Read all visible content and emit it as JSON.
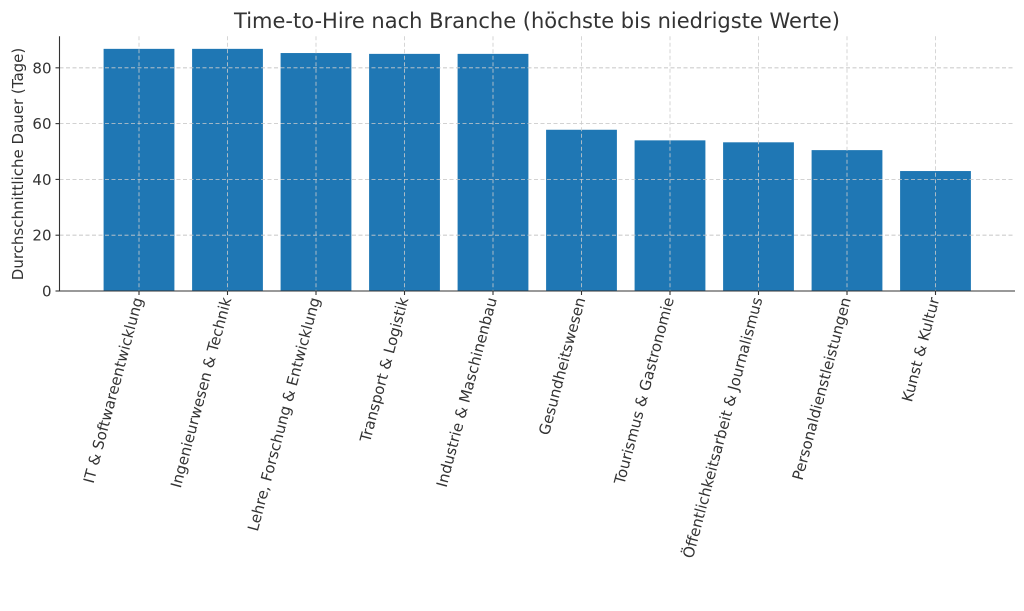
{
  "chart_data": {
    "type": "bar",
    "title": "Time-to-Hire nach Branche (höchste bis niedrigste Werte)",
    "xlabel": "",
    "ylabel": "Durchschnittliche Dauer (Tage)",
    "categories": [
      "IT & Softwareentwicklung",
      "Ingenieurwesen & Technik",
      "Lehre, Forschung & Entwicklung",
      "Transport & Logistik",
      "Industrie & Maschinenbau",
      "Gesundheitswesen",
      "Tourismus & Gastronomie",
      "Öffentlichkeitsarbeit & Journalismus",
      "Personaldienstleistungen",
      "Kunst & Kultur"
    ],
    "values": [
      86.8,
      86.8,
      85.3,
      85.0,
      85.0,
      57.8,
      54.0,
      53.3,
      50.5,
      43.0
    ],
    "ylim": [
      0,
      91.3
    ],
    "yticks": [
      0,
      20,
      40,
      60,
      80
    ],
    "grid": true,
    "legend": null,
    "bar_color": "#1f77b4",
    "xtick_rotation": 75
  }
}
